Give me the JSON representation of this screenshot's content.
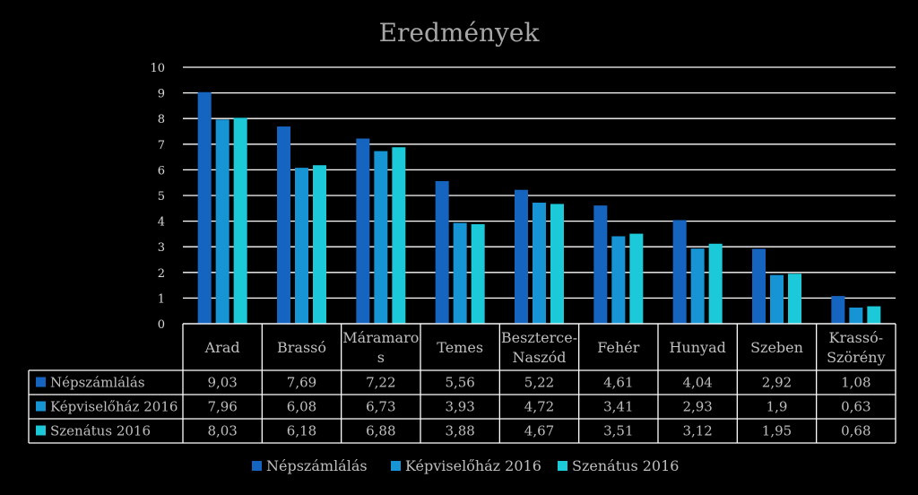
{
  "chart_data": {
    "type": "bar",
    "title": "Eredmények",
    "ylim": [
      0,
      10
    ],
    "yticks": [
      "0",
      "1",
      "2",
      "3",
      "4",
      "5",
      "6",
      "7",
      "8",
      "9",
      "10"
    ],
    "categories": [
      [
        "Arad"
      ],
      [
        "Brassó"
      ],
      [
        "Máramaro",
        "s"
      ],
      [
        "Temes"
      ],
      [
        "Beszterce-",
        "Naszód"
      ],
      [
        "Fehér"
      ],
      [
        "Hunyad"
      ],
      [
        "Szeben"
      ],
      [
        "Krassó-",
        "Szörény"
      ]
    ],
    "series": [
      {
        "name": "Népszámlálás",
        "color": "#1565c0",
        "values": [
          9.03,
          7.69,
          7.22,
          5.56,
          5.22,
          4.61,
          4.04,
          2.92,
          1.08
        ],
        "labels": [
          "9,03",
          "7,69",
          "7,22",
          "5,56",
          "5,22",
          "4,61",
          "4,04",
          "2,92",
          "1,08"
        ]
      },
      {
        "name": "Képviselőház 2016",
        "color": "#1694d4",
        "values": [
          7.96,
          6.08,
          6.73,
          3.93,
          4.72,
          3.41,
          2.93,
          1.9,
          0.63
        ],
        "labels": [
          "7,96",
          "6,08",
          "6,73",
          "3,93",
          "4,72",
          "3,41",
          "2,93",
          "1,9",
          "0,63"
        ]
      },
      {
        "name": "Szenátus 2016",
        "color": "#1cc9d8",
        "values": [
          8.03,
          6.18,
          6.88,
          3.88,
          4.67,
          3.51,
          3.12,
          1.95,
          0.68
        ],
        "labels": [
          "8,03",
          "6,18",
          "6,88",
          "3,88",
          "4,67",
          "3,51",
          "3,12",
          "1,95",
          "0,68"
        ]
      }
    ],
    "grid": true,
    "data_table": true,
    "legend_position": "bottom"
  }
}
